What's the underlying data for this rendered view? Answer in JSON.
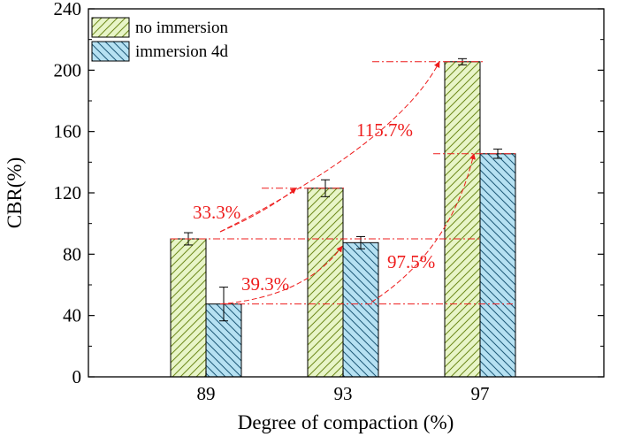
{
  "chart_data": {
    "type": "bar",
    "categories": [
      "89",
      "93",
      "97"
    ],
    "series": [
      {
        "name": "no immersion",
        "values": [
          90,
          123,
          205.5
        ],
        "errors": [
          4,
          5.5,
          2
        ],
        "fill": "#e8f5c8",
        "hatch_color": "#6e8a1c"
      },
      {
        "name": "immersion 4d",
        "values": [
          47.5,
          87.5,
          145.5
        ],
        "errors": [
          11,
          4,
          3
        ],
        "fill": "#b6e1f2",
        "hatch_color": "#1e5a78"
      }
    ],
    "xlabel": "Degree of compaction (%)",
    "ylabel": "CBR(%)",
    "ylim": [
      0,
      240
    ],
    "yticks": [
      0,
      40,
      80,
      120,
      160,
      200,
      240
    ],
    "legend_position": "top-left",
    "grid": false,
    "annotation_color": "#ee1c1c",
    "annotations": [
      {
        "text": "33.3%",
        "from": {
          "category": "89",
          "series": "no immersion"
        },
        "to": {
          "category": "93",
          "series": "no immersion"
        }
      },
      {
        "text": "115.7%",
        "from": {
          "category": "89",
          "series": "no immersion"
        },
        "to": {
          "category": "97",
          "series": "no immersion"
        }
      },
      {
        "text": "39.3%",
        "from": {
          "category": "89",
          "series": "immersion 4d"
        },
        "to": {
          "category": "93",
          "series": "immersion 4d"
        }
      },
      {
        "text": "97.5%",
        "from": {
          "category": "89",
          "series": "immersion 4d"
        },
        "to": {
          "category": "97",
          "series": "immersion 4d"
        }
      }
    ]
  }
}
